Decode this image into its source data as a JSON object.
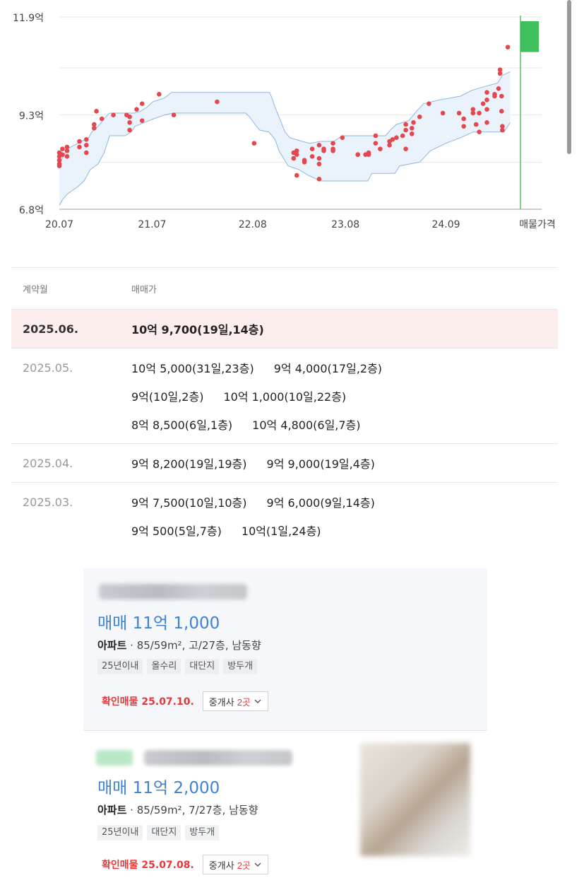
{
  "chart_data": {
    "type": "scatter",
    "y_tick_labels": [
      "11.9억",
      "9.3억",
      "6.8억"
    ],
    "y_ticks": [
      11.9,
      9.3,
      6.8
    ],
    "ylim": [
      6.8,
      11.9
    ],
    "x_tick_labels": [
      "20.07",
      "21.07",
      "22.08",
      "23.08",
      "24.09",
      "매물가격"
    ],
    "x_tick_months": [
      0,
      12,
      25,
      37,
      50,
      60
    ],
    "xlim": [
      0,
      61
    ],
    "gridlines": true,
    "series": [
      {
        "kind": "transactions",
        "color": "#e5474f",
        "points": [
          [
            0.0,
            7.95
          ],
          [
            0.0,
            8.1
          ],
          [
            0.0,
            8.2
          ],
          [
            0.0,
            8.3
          ],
          [
            0.0,
            8.0
          ],
          [
            0.4,
            8.25
          ],
          [
            0.4,
            8.4
          ],
          [
            1.0,
            8.2
          ],
          [
            1.0,
            8.35
          ],
          [
            1.0,
            8.45
          ],
          [
            2.6,
            8.45
          ],
          [
            2.6,
            8.6
          ],
          [
            3.5,
            8.3
          ],
          [
            3.5,
            8.5
          ],
          [
            3.5,
            8.65
          ],
          [
            4.5,
            8.95
          ],
          [
            4.5,
            9.05
          ],
          [
            4.8,
            9.4
          ],
          [
            5.5,
            9.2
          ],
          [
            7.0,
            9.3
          ],
          [
            8.7,
            9.3
          ],
          [
            9.1,
            9.25
          ],
          [
            9.1,
            9.1
          ],
          [
            9.1,
            8.9
          ],
          [
            10.0,
            9.45
          ],
          [
            10.7,
            9.6
          ],
          [
            10.7,
            9.15
          ],
          [
            12.9,
            9.85
          ],
          [
            14.8,
            9.3
          ],
          [
            20.4,
            9.65
          ],
          [
            25.2,
            8.55
          ],
          [
            30.3,
            8.3
          ],
          [
            30.3,
            8.15
          ],
          [
            30.7,
            8.25
          ],
          [
            30.7,
            8.35
          ],
          [
            30.7,
            7.7
          ],
          [
            31.7,
            8.05
          ],
          [
            31.7,
            8.1
          ],
          [
            32.7,
            8.2
          ],
          [
            32.7,
            8.4
          ],
          [
            33.6,
            8.0
          ],
          [
            33.6,
            8.5
          ],
          [
            33.6,
            8.15
          ],
          [
            33.6,
            7.6
          ],
          [
            34.2,
            8.4
          ],
          [
            34.2,
            8.35
          ],
          [
            35.4,
            8.35
          ],
          [
            35.4,
            8.4
          ],
          [
            35.4,
            8.55
          ],
          [
            36.6,
            8.7
          ],
          [
            38.6,
            8.25
          ],
          [
            38.6,
            8.25
          ],
          [
            39.6,
            8.25
          ],
          [
            40.0,
            8.25
          ],
          [
            40.0,
            8.3
          ],
          [
            40.9,
            8.55
          ],
          [
            40.9,
            8.75
          ],
          [
            41.5,
            8.4
          ],
          [
            42.7,
            8.5
          ],
          [
            42.7,
            8.6
          ],
          [
            43.1,
            8.65
          ],
          [
            43.6,
            8.7
          ],
          [
            44.4,
            8.75
          ],
          [
            44.8,
            8.4
          ],
          [
            44.8,
            8.9
          ],
          [
            44.8,
            9.05
          ],
          [
            45.6,
            8.8
          ],
          [
            45.6,
            8.95
          ],
          [
            45.8,
            9.1
          ],
          [
            46.6,
            9.25
          ],
          [
            47.8,
            9.6
          ],
          [
            49.6,
            9.35
          ],
          [
            51.7,
            9.35
          ],
          [
            52.3,
            9.2
          ],
          [
            52.3,
            9.0
          ],
          [
            53.5,
            9.45
          ],
          [
            53.5,
            9.35
          ],
          [
            53.9,
            9.05
          ],
          [
            54.3,
            8.85
          ],
          [
            54.3,
            9.35
          ],
          [
            54.8,
            9.6
          ],
          [
            55.3,
            9.45
          ],
          [
            55.3,
            9.7
          ],
          [
            55.3,
            9.9
          ],
          [
            55.3,
            9.1
          ],
          [
            56.3,
            9.8
          ],
          [
            56.3,
            9.85
          ],
          [
            56.8,
            10.0
          ],
          [
            57.0,
            10.4
          ],
          [
            57.0,
            10.5
          ],
          [
            57.2,
            9.8
          ],
          [
            57.2,
            9.4
          ],
          [
            57.3,
            9.0
          ],
          [
            57.3,
            8.9
          ],
          [
            58.0,
            11.1
          ]
        ]
      }
    ],
    "band": {
      "kind": "price-range",
      "color": "#eaf3fb",
      "upper": [
        [
          0.0,
          8.0
        ],
        [
          1.0,
          8.4
        ],
        [
          2.4,
          8.55
        ],
        [
          3.8,
          8.7
        ],
        [
          4.2,
          8.85
        ],
        [
          5.0,
          9.0
        ],
        [
          6.0,
          9.25
        ],
        [
          6.5,
          9.35
        ],
        [
          9.7,
          9.35
        ],
        [
          10.5,
          9.4
        ],
        [
          11.3,
          9.5
        ],
        [
          12.1,
          9.65
        ],
        [
          13.6,
          9.75
        ],
        [
          14.5,
          9.9
        ],
        [
          27.2,
          9.9
        ],
        [
          27.5,
          9.75
        ],
        [
          27.9,
          9.5
        ],
        [
          28.4,
          9.25
        ],
        [
          28.8,
          9.05
        ],
        [
          29.2,
          8.85
        ],
        [
          29.8,
          8.7
        ],
        [
          31.4,
          8.6
        ],
        [
          32.4,
          8.55
        ],
        [
          33.8,
          8.6
        ],
        [
          35.5,
          8.6
        ],
        [
          36.6,
          8.75
        ],
        [
          42.2,
          8.75
        ],
        [
          42.8,
          8.9
        ],
        [
          43.6,
          9.05
        ],
        [
          45.2,
          9.15
        ],
        [
          46.2,
          9.4
        ],
        [
          47.1,
          9.6
        ],
        [
          49.2,
          9.7
        ],
        [
          51.9,
          9.8
        ],
        [
          53.3,
          9.95
        ],
        [
          54.9,
          10.05
        ],
        [
          56.7,
          10.15
        ],
        [
          57.3,
          10.35
        ],
        [
          58.3,
          10.45
        ]
      ],
      "lower": [
        [
          0.0,
          6.9
        ],
        [
          0.4,
          7.05
        ],
        [
          1.0,
          7.2
        ],
        [
          2.4,
          7.4
        ],
        [
          3.2,
          7.55
        ],
        [
          4.0,
          7.85
        ],
        [
          5.0,
          8.0
        ],
        [
          5.8,
          8.3
        ],
        [
          6.5,
          8.75
        ],
        [
          8.5,
          8.75
        ],
        [
          9.3,
          8.85
        ],
        [
          9.8,
          9.0
        ],
        [
          11.0,
          9.1
        ],
        [
          12.2,
          9.2
        ],
        [
          13.6,
          9.3
        ],
        [
          14.7,
          9.35
        ],
        [
          24.1,
          9.35
        ],
        [
          24.6,
          9.25
        ],
        [
          25.3,
          9.05
        ],
        [
          25.9,
          8.9
        ],
        [
          27.1,
          8.85
        ],
        [
          27.9,
          8.65
        ],
        [
          28.4,
          8.35
        ],
        [
          29.6,
          7.95
        ],
        [
          31.0,
          7.85
        ],
        [
          32.2,
          7.7
        ],
        [
          33.8,
          7.55
        ],
        [
          39.9,
          7.55
        ],
        [
          40.4,
          7.75
        ],
        [
          43.4,
          7.75
        ],
        [
          44.0,
          7.95
        ],
        [
          46.6,
          8.05
        ],
        [
          48.0,
          8.35
        ],
        [
          50.0,
          8.55
        ],
        [
          51.9,
          8.7
        ],
        [
          53.5,
          8.85
        ],
        [
          57.5,
          8.85
        ],
        [
          58.3,
          9.1
        ]
      ]
    },
    "asking_price": {
      "low": 10.97,
      "high": 11.9,
      "color": "#3fc05d"
    },
    "colors": {
      "grid": "#e6e6e6",
      "axis": "#9aa0a6",
      "band_line": "#8fb7de",
      "marker_line": "#55c16b"
    }
  },
  "history": {
    "header": {
      "month": "계약월",
      "price": "매매가"
    },
    "rows": [
      {
        "month": "2025.06.",
        "highlight": true,
        "lines": [
          [
            "10억 9,700(19일,14층)"
          ]
        ]
      },
      {
        "month": "2025.05.",
        "highlight": false,
        "lines": [
          [
            "10억 5,000(31일,23층)",
            "9억 4,000(17일,2층)"
          ],
          [
            "9억(10일,2층)",
            "10억 1,000(10일,22층)"
          ],
          [
            "8억 8,500(6일,1층)",
            "10억 4,800(6일,7층)"
          ]
        ]
      },
      {
        "month": "2025.04.",
        "highlight": false,
        "lines": [
          [
            "9억 8,200(19일,19층)",
            "9억 9,000(19일,4층)"
          ]
        ]
      },
      {
        "month": "2025.03.",
        "highlight": false,
        "lines": [
          [
            "9억 7,500(10일,10층)",
            "9억 6,000(9일,14층)"
          ],
          [
            "9억 500(5일,7층)",
            "10억(1일,24층)"
          ]
        ]
      }
    ]
  },
  "listings": [
    {
      "price": "매매 11억 1,000",
      "property_type": "아파트",
      "specs": " · 85/59m², 고/27층, 남동향",
      "tags": [
        "25년이내",
        "올수리",
        "대단지",
        "방두개"
      ],
      "confirmed": "확인매물 25.07.10.",
      "broker_label": "중개사",
      "broker_count": "2곳"
    },
    {
      "price": "매매 11억 2,000",
      "property_type": "아파트",
      "specs": " · 85/59m², 7/27층, 남동향",
      "tags": [
        "25년이내",
        "대단지",
        "방두개"
      ],
      "confirmed": "확인매물 25.07.08.",
      "broker_label": "중개사",
      "broker_count": "2곳"
    }
  ]
}
